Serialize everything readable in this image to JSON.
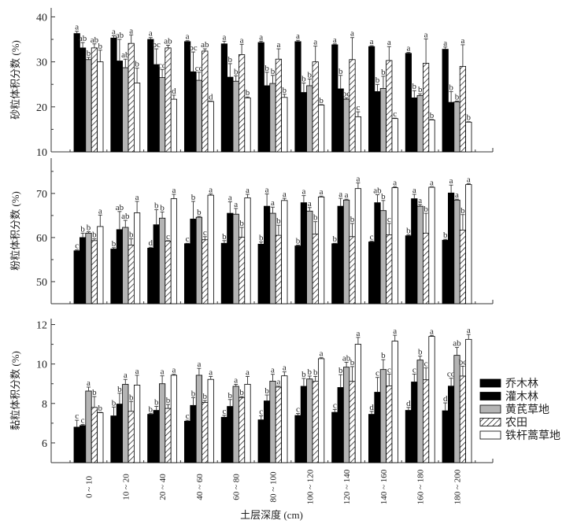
{
  "chart_data": {
    "type": "bar",
    "xlabel": "土层深度 (cm)",
    "categories": [
      "0 ~ 10",
      "10 ~ 20",
      "20 ~ 40",
      "40 ~ 60",
      "60 ~ 80",
      "80 ~ 100",
      "100 ~ 120",
      "120 ~ 140",
      "140 ~ 160",
      "160 ~ 180",
      "180 ~ 200"
    ],
    "legend": {
      "placement": "right",
      "entries": [
        "乔木林",
        "灌木林",
        "黄芪草地",
        "农田",
        "铁杆蒿草地"
      ]
    },
    "series_styles": [
      {
        "name": "乔木林",
        "fill": "#000000",
        "pattern": "solid"
      },
      {
        "name": "灌木林",
        "fill": "#000000",
        "pattern": "solid"
      },
      {
        "name": "黄芪草地",
        "fill": "#b4b4b4",
        "pattern": "solid"
      },
      {
        "name": "农田",
        "fill": "#ffffff",
        "pattern": "hatch"
      },
      {
        "name": "铁杆蒿草地",
        "fill": "#ffffff",
        "pattern": "solid"
      }
    ],
    "panels": [
      {
        "ylabel": "砂粒体积分数 (%)",
        "ylim": [
          10,
          42
        ],
        "yticks": [
          10,
          20,
          30,
          40
        ],
        "series": [
          {
            "name": "乔木林",
            "values": [
              36.3,
              35.3,
              35.0,
              34.5,
              34.0,
              34.3,
              34.5,
              33.8,
              33.4,
              31.9,
              32.8
            ],
            "errors": [
              0.5,
              0.5,
              0.4,
              0.2,
              0.6,
              0.3,
              0.3,
              0.2,
              0.2,
              0.2,
              0.5
            ],
            "letters": [
              "a",
              "a",
              "a",
              "a",
              "a",
              "a",
              "a",
              "a",
              "a",
              "a",
              "a"
            ]
          },
          {
            "name": "灌木林",
            "values": [
              33.1,
              30.2,
              29.4,
              27.8,
              26.6,
              24.7,
              23.2,
              24.0,
              23.4,
              22.0,
              21.0
            ],
            "errors": [
              1.2,
              4.8,
              3.5,
              4.4,
              3.0,
              3.0,
              2.1,
              3.0,
              1.6,
              1.6,
              2.4
            ],
            "letters": [
              "ab",
              "ab",
              "bc",
              "bc",
              "b",
              "b",
              "b",
              "b",
              "b",
              "b",
              "b"
            ]
          },
          {
            "name": "黄芪草地",
            "values": [
              30.5,
              28.7,
              26.5,
              25.9,
              25.7,
              25.2,
              24.7,
              21.7,
              24.1,
              22.5,
              21.1
            ],
            "errors": [
              0.5,
              1.9,
              1.8,
              1.8,
              1.2,
              1.8,
              1.5,
              0.3,
              2.7,
              0.4,
              0.2
            ],
            "letters": [
              "b",
              "ab",
              "cd",
              "cd",
              "b",
              "b",
              "b",
              "bc",
              "b",
              "b",
              "b"
            ]
          },
          {
            "name": "农田",
            "values": [
              33.1,
              34.1,
              33.1,
              32.4,
              31.6,
              30.6,
              30.0,
              30.5,
              30.3,
              29.7,
              29.0
            ],
            "errors": [
              0.9,
              1.9,
              0.6,
              0.5,
              2.3,
              2.3,
              3.5,
              4.9,
              3.1,
              5.4,
              4.8
            ],
            "letters": [
              "ab",
              "a",
              "ab",
              "ab",
              "a",
              "a",
              "a",
              "a",
              "a",
              "a",
              "a"
            ]
          },
          {
            "name": "铁杆蒿草地",
            "values": [
              30.0,
              25.3,
              21.7,
              21.2,
              22.0,
              22.1,
              20.4,
              17.8,
              17.4,
              17.1,
              16.6
            ],
            "errors": [
              2.6,
              3.3,
              0.9,
              0.1,
              0.2,
              0.7,
              0.1,
              1.1,
              0.1,
              0.1,
              0.1
            ],
            "letters": [
              "b",
              "b",
              "d",
              "d",
              "b",
              "b",
              "b",
              "c",
              "c",
              "b",
              "b"
            ]
          }
        ]
      },
      {
        "ylabel": "粉粒体积分数 (%)",
        "ylim": [
          45,
          78
        ],
        "yticks": [
          50,
          60,
          70
        ],
        "series": [
          {
            "name": "乔木林",
            "values": [
              57.0,
              57.4,
              57.6,
              58.6,
              58.7,
              58.5,
              58.1,
              58.6,
              59.0,
              60.4,
              59.4
            ],
            "errors": [
              0.2,
              0.3,
              0.2,
              0.1,
              0.6,
              0.5,
              0.2,
              0.1,
              0.2,
              0.2,
              0.2
            ],
            "letters": [
              "c",
              "b",
              "d",
              "c",
              "b",
              "b",
              "b",
              "b",
              "c",
              "b",
              "b"
            ]
          },
          {
            "name": "灌木林",
            "values": [
              60.0,
              61.8,
              62.9,
              64.2,
              65.5,
              67.1,
              67.9,
              67.1,
              67.9,
              68.8,
              70.1
            ],
            "errors": [
              1.0,
              4.1,
              3.4,
              4.0,
              2.6,
              2.8,
              1.6,
              1.8,
              1.8,
              1.0,
              1.8
            ],
            "letters": [
              "b",
              "ab",
              "b",
              "b",
              "a",
              "a",
              "a",
              "a",
              "ab",
              "a",
              "a"
            ]
          },
          {
            "name": "黄芪草地",
            "values": [
              61.0,
              62.3,
              64.4,
              64.6,
              65.3,
              65.5,
              66.0,
              68.5,
              66.1,
              67.1,
              68.5
            ],
            "errors": [
              0.3,
              1.6,
              1.4,
              0.2,
              1.3,
              1.4,
              0.8,
              0.2,
              2.3,
              0.4,
              0.2
            ],
            "letters": [
              "b",
              "ab",
              "b",
              "b",
              "a",
              "a",
              "a",
              "a",
              "b",
              "a",
              "a"
            ]
          },
          {
            "name": "农田",
            "values": [
              59.3,
              58.3,
              59.2,
              59.5,
              60.1,
              60.5,
              60.8,
              60.2,
              60.6,
              61.0,
              61.7
            ],
            "errors": [
              0.4,
              1.4,
              0.1,
              0.7,
              2.2,
              2.3,
              2.8,
              3.0,
              2.6,
              4.5,
              3.5
            ],
            "letters": [
              "b",
              "b",
              "c",
              "c",
              "b",
              "b",
              "b",
              "b",
              "c",
              "b",
              "b"
            ]
          },
          {
            "name": "铁杆蒿草地",
            "values": [
              62.5,
              65.6,
              68.8,
              69.6,
              69.0,
              68.4,
              69.2,
              71.1,
              71.3,
              71.4,
              72.0
            ],
            "errors": [
              2.6,
              2.6,
              1.0,
              0.3,
              0.8,
              0.5,
              0.2,
              1.3,
              0.2,
              0.1,
              0.2
            ],
            "letters": [
              "a",
              "a",
              "a",
              "a",
              "a",
              "a",
              "a",
              "a",
              "a",
              "a",
              "a"
            ]
          }
        ]
      },
      {
        "ylabel": "黏粒体积分数 (%)",
        "ylim": [
          5,
          12.3
        ],
        "yticks": [
          6,
          8,
          10,
          12
        ],
        "series": [
          {
            "name": "乔木林",
            "values": [
              6.8,
              7.37,
              7.45,
              7.1,
              7.3,
              7.17,
              7.39,
              7.55,
              7.45,
              7.65,
              7.63
            ],
            "errors": [
              0.35,
              0.45,
              0.05,
              0.05,
              0.1,
              0.2,
              0.1,
              0.15,
              0.15,
              0.15,
              0.4
            ],
            "letters": [
              "c",
              "b",
              "b",
              "c",
              "c",
              "c",
              "c",
              "c",
              "d",
              "d",
              "d"
            ]
          },
          {
            "name": "灌木林",
            "values": [
              6.88,
              7.97,
              7.65,
              7.9,
              7.85,
              8.13,
              8.87,
              8.81,
              8.57,
              9.09,
              8.88
            ],
            "errors": [
              0.05,
              0.55,
              0.2,
              0.4,
              0.35,
              0.3,
              0.4,
              0.65,
              0.75,
              0.4,
              0.4
            ],
            "letters": [
              "c",
              "b",
              "b",
              "b",
              "b",
              "b",
              "b",
              "b",
              "c",
              "c",
              "cd"
            ]
          },
          {
            "name": "黄芪草地",
            "values": [
              8.63,
              8.97,
              9.0,
              9.43,
              8.87,
              9.13,
              9.24,
              9.84,
              9.72,
              10.2,
              10.44
            ],
            "errors": [
              0.2,
              0.25,
              0.4,
              0.35,
              0.1,
              0.35,
              0.15,
              0.25,
              0.5,
              0.2,
              0.4
            ],
            "letters": [
              "a",
              "a",
              "a",
              "a",
              "a",
              "a",
              "b",
              "ab",
              "b",
              "b",
              "ab"
            ]
          },
          {
            "name": "农田",
            "values": [
              7.8,
              7.6,
              7.75,
              8.05,
              8.3,
              8.83,
              9.12,
              9.12,
              8.89,
              9.2,
              9.39
            ],
            "errors": [
              0.55,
              0.5,
              0.2,
              0.1,
              0.05,
              0.05,
              0.25,
              0.75,
              0.6,
              0.6,
              0.5
            ],
            "letters": [
              "b",
              "b",
              "b",
              "b",
              "b",
              "a",
              "b",
              "b",
              "c",
              "c",
              "bc"
            ]
          },
          {
            "name": "铁杆蒿草地",
            "values": [
              7.53,
              8.93,
              9.43,
              9.22,
              8.97,
              9.4,
              10.27,
              11.0,
              11.16,
              11.4,
              11.25
            ],
            "errors": [
              0.02,
              0.5,
              0.05,
              0.15,
              0.4,
              0.2,
              0.05,
              0.35,
              0.3,
              0.05,
              0.25
            ],
            "letters": [
              "b",
              "a",
              "a",
              "a",
              "a",
              "a",
              "a",
              "a",
              "a",
              "a",
              "a"
            ]
          }
        ]
      }
    ]
  }
}
